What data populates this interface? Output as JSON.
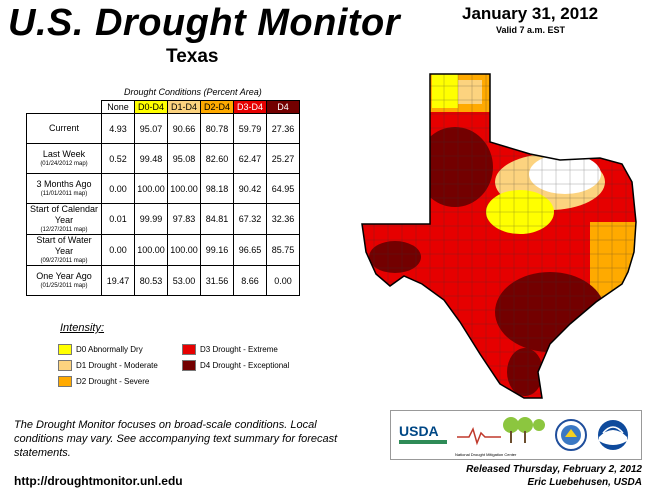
{
  "header": {
    "title": "U.S. Drought Monitor",
    "region": "Texas",
    "date": "January 31, 2012",
    "valid": "Valid 7 a.m. EST"
  },
  "table": {
    "caption": "Drought Conditions (Percent Area)",
    "columns": [
      "None",
      "D0-D4",
      "D1-D4",
      "D2-D4",
      "D3-D4",
      "D4"
    ],
    "rows": [
      {
        "label": "Current",
        "sub": "",
        "values": [
          "4.93",
          "95.07",
          "90.66",
          "80.78",
          "59.79",
          "27.36"
        ]
      },
      {
        "label": "Last Week",
        "sub": "(01/24/2012 map)",
        "values": [
          "0.52",
          "99.48",
          "95.08",
          "82.60",
          "62.47",
          "25.27"
        ]
      },
      {
        "label": "3 Months Ago",
        "sub": "(11/01/2011 map)",
        "values": [
          "0.00",
          "100.00",
          "100.00",
          "98.18",
          "90.42",
          "64.95"
        ]
      },
      {
        "label": "Start of Calendar Year",
        "sub": "(12/27/2011 map)",
        "values": [
          "0.01",
          "99.99",
          "97.83",
          "84.81",
          "67.32",
          "32.36"
        ]
      },
      {
        "label": "Start of Water Year",
        "sub": "(09/27/2011 map)",
        "values": [
          "0.00",
          "100.00",
          "100.00",
          "99.16",
          "96.65",
          "85.75"
        ]
      },
      {
        "label": "One Year Ago",
        "sub": "(01/25/2011 map)",
        "values": [
          "19.47",
          "80.53",
          "53.00",
          "31.56",
          "8.66",
          "0.00"
        ]
      }
    ]
  },
  "legend": {
    "title": "Intensity:",
    "items": [
      {
        "label": "D0 Abnormally Dry",
        "color": "#ffff00"
      },
      {
        "label": "D1 Drought - Moderate",
        "color": "#fcd37f"
      },
      {
        "label": "D2 Drought - Severe",
        "color": "#ffaa00"
      },
      {
        "label": "D3 Drought - Extreme",
        "color": "#e60000"
      },
      {
        "label": "D4 Drought - Exceptional",
        "color": "#730000"
      }
    ]
  },
  "footer": {
    "note": "The Drought Monitor focuses on broad-scale conditions. Local conditions may vary. See accompanying text summary for forecast statements.",
    "url": "http://droughtmonitor.unl.edu",
    "released": "Released Thursday, February 2, 2012",
    "author": "Eric Luebehusen, USDA"
  },
  "logos": {
    "usda": "USDA",
    "ndmc": "National Drought Mitigation Center"
  }
}
